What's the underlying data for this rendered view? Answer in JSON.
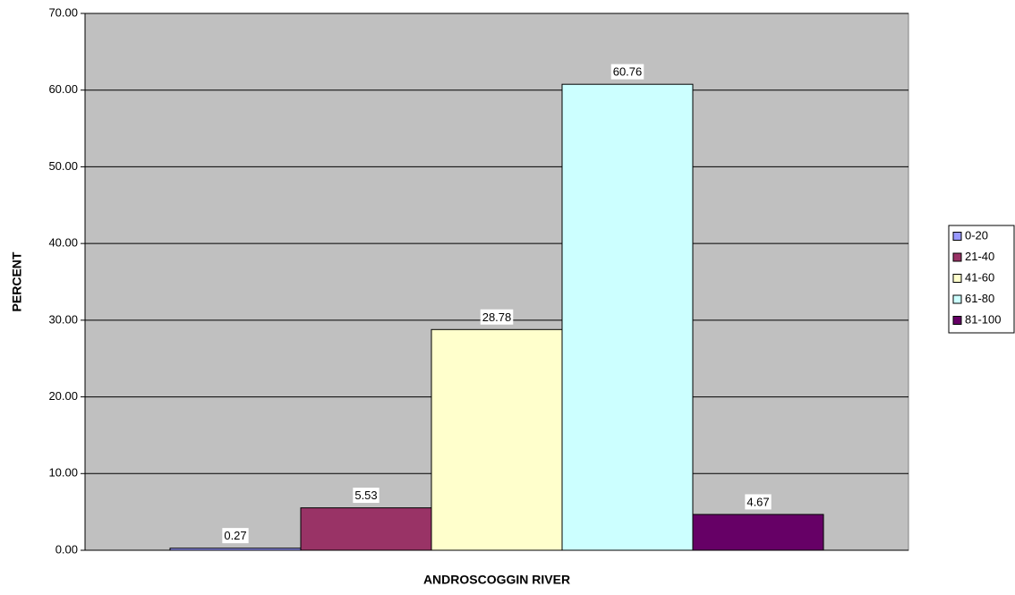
{
  "chart_data": {
    "type": "bar",
    "x_label": "ANDROSCOGGIN RIVER",
    "y_label": "PERCENT",
    "series": [
      {
        "name": "0-20",
        "color": "#9999ff",
        "values": [
          0.27
        ]
      },
      {
        "name": "21-40",
        "color": "#993366",
        "values": [
          5.53
        ]
      },
      {
        "name": "41-60",
        "color": "#ffffcc",
        "values": [
          28.78
        ]
      },
      {
        "name": "61-80",
        "color": "#ccffff",
        "values": [
          60.76
        ]
      },
      {
        "name": "81-100",
        "color": "#660066",
        "values": [
          4.67
        ]
      }
    ],
    "ylim": [
      0,
      70
    ],
    "yticks": [
      {
        "value": 0,
        "label": "0.00"
      },
      {
        "value": 10,
        "label": "10.00"
      },
      {
        "value": 20,
        "label": "20.00"
      },
      {
        "value": 30,
        "label": "30.00"
      },
      {
        "value": 40,
        "label": "40.00"
      },
      {
        "value": 50,
        "label": "50.00"
      },
      {
        "value": 60,
        "label": "60.00"
      },
      {
        "value": 70,
        "label": "70.00"
      }
    ],
    "grid": true,
    "legend": "right",
    "plot_background": "#c0c0c0"
  }
}
